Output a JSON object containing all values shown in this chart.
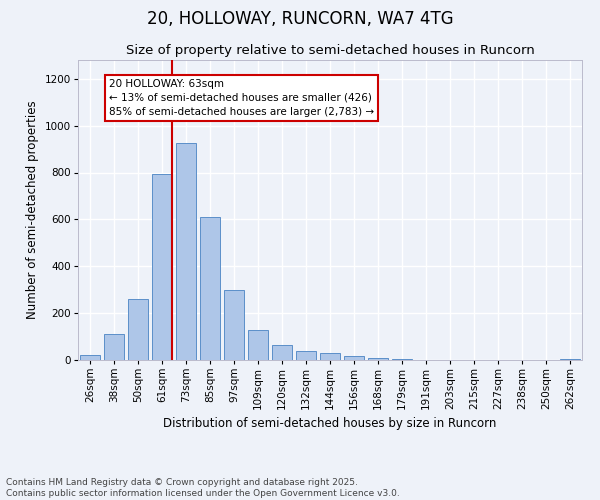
{
  "title": "20, HOLLOWAY, RUNCORN, WA7 4TG",
  "subtitle": "Size of property relative to semi-detached houses in Runcorn",
  "xlabel": "Distribution of semi-detached houses by size in Runcorn",
  "ylabel": "Number of semi-detached properties",
  "categories": [
    "26sqm",
    "38sqm",
    "50sqm",
    "61sqm",
    "73sqm",
    "85sqm",
    "97sqm",
    "109sqm",
    "120sqm",
    "132sqm",
    "144sqm",
    "156sqm",
    "168sqm",
    "179sqm",
    "191sqm",
    "203sqm",
    "215sqm",
    "227sqm",
    "238sqm",
    "250sqm",
    "262sqm"
  ],
  "values": [
    20,
    113,
    262,
    795,
    928,
    610,
    300,
    128,
    63,
    37,
    30,
    15,
    7,
    3,
    2,
    1,
    0,
    0,
    0,
    0,
    5
  ],
  "bar_color": "#aec6e8",
  "bar_edge_color": "#5b8fc9",
  "property_line_bar_index": 3,
  "annotation_title": "20 HOLLOWAY: 63sqm",
  "annotation_line1": "← 13% of semi-detached houses are smaller (426)",
  "annotation_line2": "85% of semi-detached houses are larger (2,783) →",
  "annotation_box_color": "#ffffff",
  "annotation_box_edge_color": "#cc0000",
  "vline_color": "#cc0000",
  "ylim": [
    0,
    1280
  ],
  "yticks": [
    0,
    200,
    400,
    600,
    800,
    1000,
    1200
  ],
  "footnote_line1": "Contains HM Land Registry data © Crown copyright and database right 2025.",
  "footnote_line2": "Contains public sector information licensed under the Open Government Licence v3.0.",
  "background_color": "#eef2f9",
  "grid_color": "#ffffff",
  "title_fontsize": 12,
  "subtitle_fontsize": 9.5,
  "ylabel_fontsize": 8.5,
  "xlabel_fontsize": 8.5,
  "tick_fontsize": 7.5,
  "annotation_fontsize": 7.5,
  "footnote_fontsize": 6.5
}
